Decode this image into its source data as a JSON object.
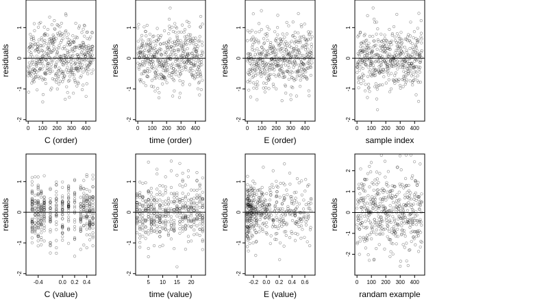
{
  "figure": {
    "description_rows": 2,
    "description_cols": 4
  },
  "chart_data": [
    {
      "type": "scatter",
      "id": "p1",
      "title": "",
      "xlabel": "C (order)",
      "ylabel": "residuals",
      "xlim": [
        -15,
        470
      ],
      "ylim": [
        -2.05,
        1.9
      ],
      "xticks": [
        0,
        100,
        200,
        300,
        400
      ],
      "xticklabels": [
        "0",
        "100",
        "200",
        "300",
        "400"
      ],
      "yticks": [
        -2,
        -1,
        0,
        1
      ],
      "yticklabels": [
        "-2",
        "-1",
        "0",
        "1"
      ],
      "zero_line": true,
      "generator": {
        "kind": "uniform_x",
        "n": 460,
        "xmin": 0,
        "xmax": 450,
        "sd": 0.5,
        "seed": 11
      }
    },
    {
      "type": "scatter",
      "id": "p2",
      "title": "",
      "xlabel": "time (order)",
      "ylabel": "residuals",
      "xlim": [
        -15,
        470
      ],
      "ylim": [
        -2.05,
        1.9
      ],
      "xticks": [
        0,
        100,
        200,
        300,
        400
      ],
      "xticklabels": [
        "0",
        "100",
        "200",
        "300",
        "400"
      ],
      "yticks": [
        -2,
        -1,
        0,
        1
      ],
      "yticklabels": [
        "-2",
        "-1",
        "0",
        "1"
      ],
      "zero_line": true,
      "generator": {
        "kind": "uniform_x",
        "n": 460,
        "xmin": 0,
        "xmax": 450,
        "sd": 0.5,
        "seed": 23
      }
    },
    {
      "type": "scatter",
      "id": "p3",
      "title": "",
      "xlabel": "E (order)",
      "ylabel": "residuals",
      "xlim": [
        -15,
        470
      ],
      "ylim": [
        -2.05,
        1.9
      ],
      "xticks": [
        0,
        100,
        200,
        300,
        400
      ],
      "xticklabels": [
        "0",
        "100",
        "200",
        "300",
        "400"
      ],
      "yticks": [
        -2,
        -1,
        0,
        1
      ],
      "yticklabels": [
        "-2",
        "-1",
        "0",
        "1"
      ],
      "zero_line": true,
      "generator": {
        "kind": "uniform_x",
        "n": 460,
        "xmin": 0,
        "xmax": 450,
        "sd": 0.5,
        "seed": 37
      }
    },
    {
      "type": "scatter",
      "id": "p4",
      "title": "",
      "xlabel": "sample index",
      "ylabel": "residuals",
      "xlim": [
        -15,
        470
      ],
      "ylim": [
        -2.05,
        1.9
      ],
      "xticks": [
        0,
        100,
        200,
        300,
        400
      ],
      "xticklabels": [
        "0",
        "100",
        "200",
        "300",
        "400"
      ],
      "yticks": [
        -2,
        -1,
        0,
        1
      ],
      "yticklabels": [
        "-2",
        "-1",
        "0",
        "1"
      ],
      "zero_line": true,
      "generator": {
        "kind": "uniform_x",
        "n": 460,
        "xmin": 0,
        "xmax": 450,
        "sd": 0.5,
        "seed": 41
      }
    },
    {
      "type": "scatter",
      "id": "p5",
      "title": "",
      "xlabel": "C (value)",
      "ylabel": "residuals",
      "xlim": [
        -0.6,
        0.55
      ],
      "ylim": [
        -2.05,
        1.9
      ],
      "xticks": [
        -0.4,
        0.0,
        0.2,
        0.4
      ],
      "xticklabels": [
        "-0.4",
        "0.0",
        "0.2",
        "0.4"
      ],
      "yticks": [
        -2,
        -1,
        0,
        1
      ],
      "yticklabels": [
        "-2",
        "-1",
        "0",
        "1"
      ],
      "zero_line": true,
      "generator": {
        "kind": "discrete_x",
        "n": 460,
        "levels": [
          -0.5,
          -0.45,
          -0.4,
          -0.35,
          -0.3,
          -0.2,
          -0.1,
          0.0,
          0.1,
          0.2,
          0.3,
          0.35,
          0.4,
          0.45,
          0.5
        ],
        "sd": 0.5,
        "seed": 53
      }
    },
    {
      "type": "scatter",
      "id": "p6",
      "title": "",
      "xlabel": "time (value)",
      "ylabel": "residuals",
      "xlim": [
        0.5,
        25
      ],
      "ylim": [
        -2.05,
        1.9
      ],
      "xticks": [
        5,
        10,
        15,
        20
      ],
      "xticklabels": [
        "5",
        "10",
        "15",
        "20"
      ],
      "yticks": [
        -2,
        -1,
        0,
        1
      ],
      "yticklabels": [
        "-2",
        "-1",
        "0",
        "1"
      ],
      "zero_line": true,
      "generator": {
        "kind": "discrete_x",
        "n": 460,
        "levels": [
          1,
          2,
          3,
          4,
          5,
          6,
          7,
          8,
          9,
          10,
          11,
          12,
          13,
          14,
          15,
          16,
          17,
          18,
          19,
          20,
          21,
          22,
          23,
          24
        ],
        "sd": 0.5,
        "seed": 67
      }
    },
    {
      "type": "scatter",
      "id": "p7",
      "title": "",
      "xlabel": "E (value)",
      "ylabel": "residuals",
      "xlim": [
        -0.33,
        0.76
      ],
      "ylim": [
        -2.05,
        1.9
      ],
      "xticks": [
        -0.2,
        0.0,
        0.2,
        0.4,
        0.6
      ],
      "xticklabels": [
        "-0.2",
        "0.0",
        "0.2",
        "0.4",
        "0.6"
      ],
      "yticks": [
        -2,
        -1,
        0,
        1
      ],
      "yticklabels": [
        "-2",
        "-1",
        "0",
        "1"
      ],
      "zero_line": true,
      "generator": {
        "kind": "skewed_x",
        "n": 460,
        "xmin": -0.3,
        "xmax": 0.7,
        "sd": 0.5,
        "seed": 79
      }
    },
    {
      "type": "scatter",
      "id": "p8",
      "title": "",
      "xlabel": "randam example",
      "ylabel": "residuals",
      "xlim": [
        -15,
        470
      ],
      "ylim": [
        -3.0,
        2.8
      ],
      "xticks": [
        0,
        100,
        200,
        300,
        400
      ],
      "xticklabels": [
        "0",
        "100",
        "200",
        "300",
        "400"
      ],
      "yticks": [
        -2,
        -1,
        0,
        1,
        2
      ],
      "yticklabels": [
        "-2",
        "-1",
        "0",
        "1",
        "2"
      ],
      "zero_line": true,
      "generator": {
        "kind": "uniform_x",
        "n": 460,
        "xmin": 0,
        "xmax": 450,
        "sd": 1.0,
        "seed": 97
      }
    }
  ]
}
